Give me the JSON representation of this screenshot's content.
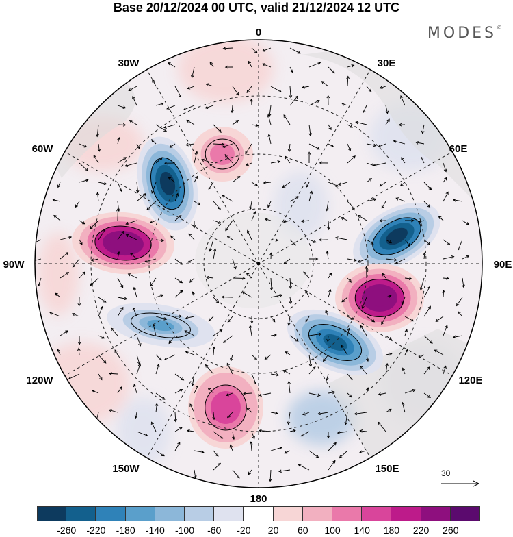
{
  "title": "Base 20/12/2024 00 UTC, valid 21/12/2024 12 UTC",
  "brand": {
    "name": "MODES",
    "mark": "©"
  },
  "labels": {
    "lon_0": "0",
    "lon_30e": "30E",
    "lon_60e": "60E",
    "lon_90e": "90E",
    "lon_120e": "120E",
    "lon_150e": "150E",
    "lon_180": "180",
    "lon_150w": "150W",
    "lon_120w": "120W",
    "lon_90w": "90W",
    "lon_60w": "60W",
    "lon_30w": "30W"
  },
  "reference_vector": {
    "label": "30"
  },
  "colorbar": {
    "colors": [
      "#0d3a5e",
      "#13608d",
      "#2f82b8",
      "#5a9fcb",
      "#8cb7d9",
      "#b8cde5",
      "#dfe2ef",
      "#ffffff",
      "#f7d6d6",
      "#f2b0c0",
      "#ea79aa",
      "#d9459b",
      "#bd1b8a",
      "#8e0f7e",
      "#5b0a6e"
    ],
    "ticks": [
      "-260",
      "-220",
      "-180",
      "-140",
      "-100",
      "-60",
      "-20",
      "20",
      "60",
      "100",
      "140",
      "180",
      "220",
      "260"
    ]
  },
  "anomaly_centers": [
    {
      "name": "north-atlantic-low",
      "value": -260
    },
    {
      "name": "north-america-high",
      "value": 260
    },
    {
      "name": "ural-high",
      "value": 140
    },
    {
      "name": "siberia-low",
      "value": -260
    },
    {
      "name": "east-asia-high",
      "value": 260
    },
    {
      "name": "pacific-low",
      "value": -220
    },
    {
      "name": "bering-high",
      "value": 180
    },
    {
      "name": "canada-low",
      "value": -140
    }
  ]
}
